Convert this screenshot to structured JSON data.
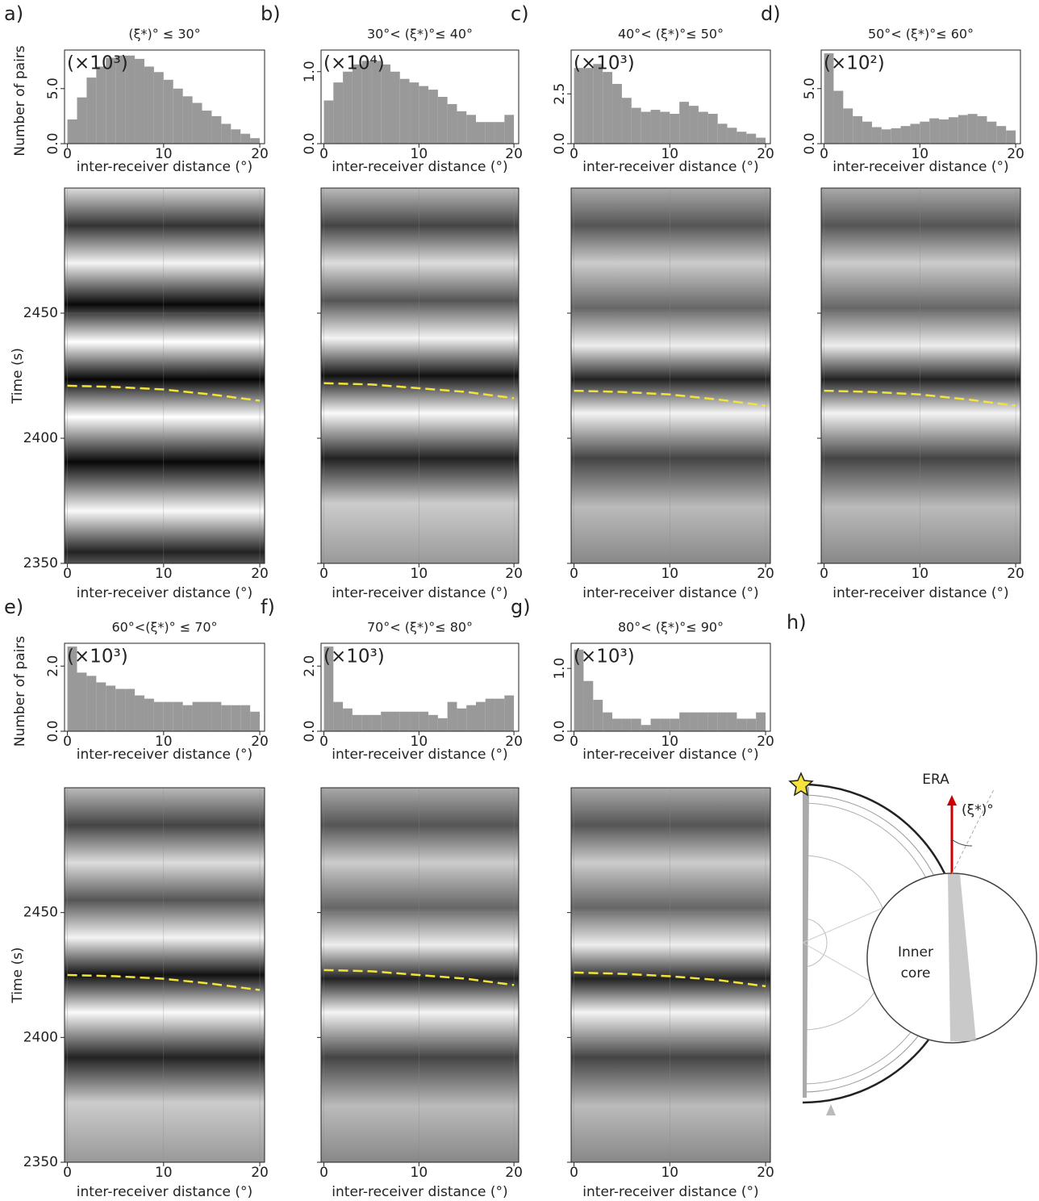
{
  "chart_data": [
    {
      "type": "histogram",
      "label": "a)",
      "title": "(ξ*)° ≤ 30°",
      "multiplier": "(×10³)",
      "ylabel": "Number of pairs",
      "xlabel": "inter-receiver distance (°)",
      "color": "#999999",
      "bins": [
        0,
        1,
        2,
        3,
        4,
        5,
        6,
        7,
        8,
        9,
        10,
        11,
        12,
        13,
        14,
        15,
        16,
        17,
        18,
        19,
        20
      ],
      "values": [
        2.2,
        4.2,
        6.0,
        7.0,
        7.8,
        8.0,
        8.0,
        7.7,
        7.0,
        6.5,
        5.8,
        5.0,
        4.3,
        3.7,
        3.0,
        2.5,
        1.8,
        1.3,
        0.9,
        0.5
      ],
      "xlim": [
        -0.3,
        20.5
      ],
      "xticks": [
        0,
        10,
        20
      ],
      "ylim": [
        0,
        8.5
      ],
      "yticks": [
        {
          "value": 0,
          "label": "0.0"
        },
        {
          "value": 5,
          "label": "5.0"
        }
      ]
    },
    {
      "type": "line",
      "ylabel": "Time (s)",
      "xlabel": "inter-receiver distance (°)",
      "xlim": [
        -0.3,
        20.5
      ],
      "xticks": [
        0,
        10,
        20
      ],
      "ylim": [
        2350,
        2500
      ],
      "yticks": [
        2350,
        2400,
        2450
      ],
      "grid": true,
      "x": [
        0,
        5,
        10,
        15,
        20
      ],
      "series": [
        {
          "color": "#f2e33a",
          "values": [
            2421,
            2420.5,
            2419.5,
            2417.5,
            2415
          ]
        }
      ]
    },
    {
      "type": "histogram",
      "label": "b)",
      "title": "30°< (ξ*)°≤ 40°",
      "multiplier": "(×10⁴)",
      "xlabel": "inter-receiver distance (°)",
      "color": "#999999",
      "bins": [
        0,
        1,
        2,
        3,
        4,
        5,
        6,
        7,
        8,
        9,
        10,
        11,
        12,
        13,
        14,
        15,
        16,
        17,
        18,
        19,
        20
      ],
      "values": [
        0.6,
        0.85,
        1.0,
        1.1,
        1.15,
        1.15,
        1.1,
        1.0,
        0.9,
        0.85,
        0.8,
        0.75,
        0.65,
        0.55,
        0.45,
        0.4,
        0.3,
        0.3,
        0.3,
        0.4
      ],
      "xlim": [
        -0.3,
        20.5
      ],
      "xticks": [
        0,
        10,
        20
      ],
      "ylim": [
        0,
        1.3
      ],
      "yticks": [
        {
          "value": 0,
          "label": "0.0"
        },
        {
          "value": 1,
          "label": "1.0"
        }
      ]
    },
    {
      "type": "line",
      "xlabel": "inter-receiver distance (°)",
      "xlim": [
        -0.3,
        20.5
      ],
      "xticks": [
        0,
        10,
        20
      ],
      "ylim": [
        2350,
        2500
      ],
      "yticks": [
        2350,
        2400,
        2450
      ],
      "grid": true,
      "x": [
        0,
        5,
        10,
        15,
        20
      ],
      "series": [
        {
          "color": "#f2e33a",
          "values": [
            2422,
            2421.5,
            2420,
            2418.5,
            2416
          ]
        }
      ]
    },
    {
      "type": "histogram",
      "label": "c)",
      "title": "40°< (ξ*)°≤ 50°",
      "multiplier": "(×10³)",
      "xlabel": "inter-receiver distance (°)",
      "color": "#999999",
      "bins": [
        0,
        1,
        2,
        3,
        4,
        5,
        6,
        7,
        8,
        9,
        10,
        11,
        12,
        13,
        14,
        15,
        16,
        17,
        18,
        19,
        20
      ],
      "values": [
        3.8,
        3.8,
        4.0,
        3.6,
        3.0,
        2.3,
        1.8,
        1.6,
        1.7,
        1.6,
        1.5,
        2.1,
        1.9,
        1.6,
        1.5,
        1.0,
        0.8,
        0.6,
        0.5,
        0.3
      ],
      "xlim": [
        -0.3,
        20.5
      ],
      "xticks": [
        0,
        10,
        20
      ],
      "ylim": [
        0,
        4.7
      ],
      "yticks": [
        {
          "value": 0,
          "label": "0.0"
        },
        2.5
      ]
    },
    {
      "type": "line",
      "xlabel": "inter-receiver distance (°)",
      "xlim": [
        -0.3,
        20.5
      ],
      "xticks": [
        0,
        10,
        20
      ],
      "ylim": [
        2350,
        2500
      ],
      "yticks": [
        2350,
        2400,
        2450
      ],
      "grid": true,
      "x": [
        0,
        5,
        10,
        15,
        20
      ],
      "series": [
        {
          "color": "#f2e33a",
          "values": [
            2419,
            2418.5,
            2417.5,
            2415.5,
            2413
          ]
        }
      ]
    },
    {
      "type": "histogram",
      "label": "d)",
      "title": "50°< (ξ*)°≤ 60°",
      "multiplier": "(×10²)",
      "xlabel": "inter-receiver distance (°)",
      "color": "#999999",
      "bins": [
        0,
        1,
        2,
        3,
        4,
        5,
        6,
        7,
        8,
        9,
        10,
        11,
        12,
        13,
        14,
        15,
        16,
        17,
        18,
        19,
        20
      ],
      "values": [
        8.2,
        4.8,
        3.2,
        2.5,
        2.0,
        1.5,
        1.3,
        1.4,
        1.6,
        1.8,
        2.0,
        2.3,
        2.2,
        2.4,
        2.6,
        2.7,
        2.5,
        2.0,
        1.6,
        1.2
      ],
      "xlim": [
        -0.3,
        20.5
      ],
      "xticks": [
        0,
        10,
        20
      ],
      "ylim": [
        0,
        8.5
      ],
      "yticks": [
        {
          "value": 0,
          "label": "0.0"
        },
        {
          "value": 5,
          "label": "5.0"
        }
      ]
    },
    {
      "type": "line",
      "xlabel": "inter-receiver distance (°)",
      "xlim": [
        -0.3,
        20.5
      ],
      "xticks": [
        0,
        10,
        20
      ],
      "ylim": [
        2350,
        2500
      ],
      "yticks": [
        2350,
        2400,
        2450
      ],
      "grid": true,
      "x": [
        0,
        5,
        10,
        15,
        20
      ],
      "series": [
        {
          "color": "#f2e33a",
          "values": [
            2419,
            2418.5,
            2417.5,
            2415.5,
            2413
          ]
        }
      ]
    },
    {
      "type": "histogram",
      "label": "e)",
      "title": "60°<(ξ*)° ≤ 70°",
      "multiplier": "(×10³)",
      "ylabel": "Number of pairs",
      "xlabel": "inter-receiver distance (°)",
      "color": "#999999",
      "bins": [
        0,
        1,
        2,
        3,
        4,
        5,
        6,
        7,
        8,
        9,
        10,
        11,
        12,
        13,
        14,
        15,
        16,
        17,
        18,
        19,
        20
      ],
      "values": [
        2.6,
        1.8,
        1.7,
        1.5,
        1.4,
        1.3,
        1.3,
        1.1,
        1.0,
        0.9,
        0.9,
        0.9,
        0.8,
        0.9,
        0.9,
        0.9,
        0.8,
        0.8,
        0.8,
        0.6
      ],
      "xlim": [
        -0.3,
        20.5
      ],
      "xticks": [
        0,
        10,
        20
      ],
      "ylim": [
        0,
        2.7
      ],
      "yticks": [
        {
          "value": 0,
          "label": "0.0"
        },
        {
          "value": 2,
          "label": "2.0"
        }
      ]
    },
    {
      "type": "line",
      "ylabel": "Time (s)",
      "xlabel": "inter-receiver distance (°)",
      "xlim": [
        -0.3,
        20.5
      ],
      "xticks": [
        0,
        10,
        20
      ],
      "ylim": [
        2350,
        2500
      ],
      "yticks": [
        2350,
        2400,
        2450
      ],
      "grid": true,
      "x": [
        0,
        5,
        10,
        15,
        20
      ],
      "series": [
        {
          "color": "#f2e33a",
          "values": [
            2425,
            2424.5,
            2423.5,
            2421.5,
            2419
          ]
        }
      ]
    },
    {
      "type": "histogram",
      "label": "f)",
      "title": "70°< (ξ*)°≤ 80°",
      "multiplier": "(×10³)",
      "xlabel": "inter-receiver distance (°)",
      "color": "#999999",
      "bins": [
        0,
        1,
        2,
        3,
        4,
        5,
        6,
        7,
        8,
        9,
        10,
        11,
        12,
        13,
        14,
        15,
        16,
        17,
        18,
        19,
        20
      ],
      "values": [
        2.6,
        0.9,
        0.7,
        0.5,
        0.5,
        0.5,
        0.6,
        0.6,
        0.6,
        0.6,
        0.6,
        0.5,
        0.4,
        0.9,
        0.7,
        0.8,
        0.9,
        1.0,
        1.0,
        1.1
      ],
      "xlim": [
        -0.3,
        20.5
      ],
      "xticks": [
        0,
        10,
        20
      ],
      "ylim": [
        0,
        2.7
      ],
      "yticks": [
        {
          "value": 0,
          "label": "0.0"
        },
        {
          "value": 2,
          "label": "2.0"
        }
      ]
    },
    {
      "type": "line",
      "xlabel": "inter-receiver distance (°)",
      "xlim": [
        -0.3,
        20.5
      ],
      "xticks": [
        0,
        10,
        20
      ],
      "ylim": [
        2350,
        2500
      ],
      "yticks": [
        2350,
        2400,
        2450
      ],
      "grid": true,
      "x": [
        0,
        5,
        10,
        15,
        20
      ],
      "series": [
        {
          "color": "#f2e33a",
          "values": [
            2427,
            2426.5,
            2425,
            2423.5,
            2421
          ]
        }
      ]
    },
    {
      "type": "histogram",
      "label": "g)",
      "title": "80°< (ξ*)°≤ 90°",
      "multiplier": "(×10³)",
      "xlabel": "inter-receiver distance (°)",
      "color": "#999999",
      "bins": [
        0,
        1,
        2,
        3,
        4,
        5,
        6,
        7,
        8,
        9,
        10,
        11,
        12,
        13,
        14,
        15,
        16,
        17,
        18,
        19,
        20
      ],
      "values": [
        1.3,
        0.8,
        0.5,
        0.3,
        0.2,
        0.2,
        0.2,
        0.1,
        0.2,
        0.2,
        0.2,
        0.3,
        0.3,
        0.3,
        0.3,
        0.3,
        0.3,
        0.2,
        0.2,
        0.3
      ],
      "xlim": [
        -0.3,
        20.5
      ],
      "xticks": [
        0,
        10,
        20
      ],
      "ylim": [
        0,
        1.4
      ],
      "yticks": [
        {
          "value": 0,
          "label": "0.0"
        },
        {
          "value": 1,
          "label": "1.0"
        }
      ]
    },
    {
      "type": "line",
      "xlabel": "inter-receiver distance (°)",
      "xlim": [
        -0.3,
        20.5
      ],
      "xticks": [
        0,
        10,
        20
      ],
      "ylim": [
        2350,
        2500
      ],
      "yticks": [
        2350,
        2400,
        2450
      ],
      "grid": true,
      "x": [
        0,
        5,
        10,
        15,
        20
      ],
      "series": [
        {
          "color": "#f2e33a",
          "values": [
            2426,
            2425.5,
            2424.5,
            2423,
            2420.5
          ]
        }
      ]
    }
  ],
  "diagram": {
    "label": "h)",
    "era": "ERA",
    "angle": "(ξ*)°",
    "core_line1": "Inner",
    "core_line2": "core"
  }
}
